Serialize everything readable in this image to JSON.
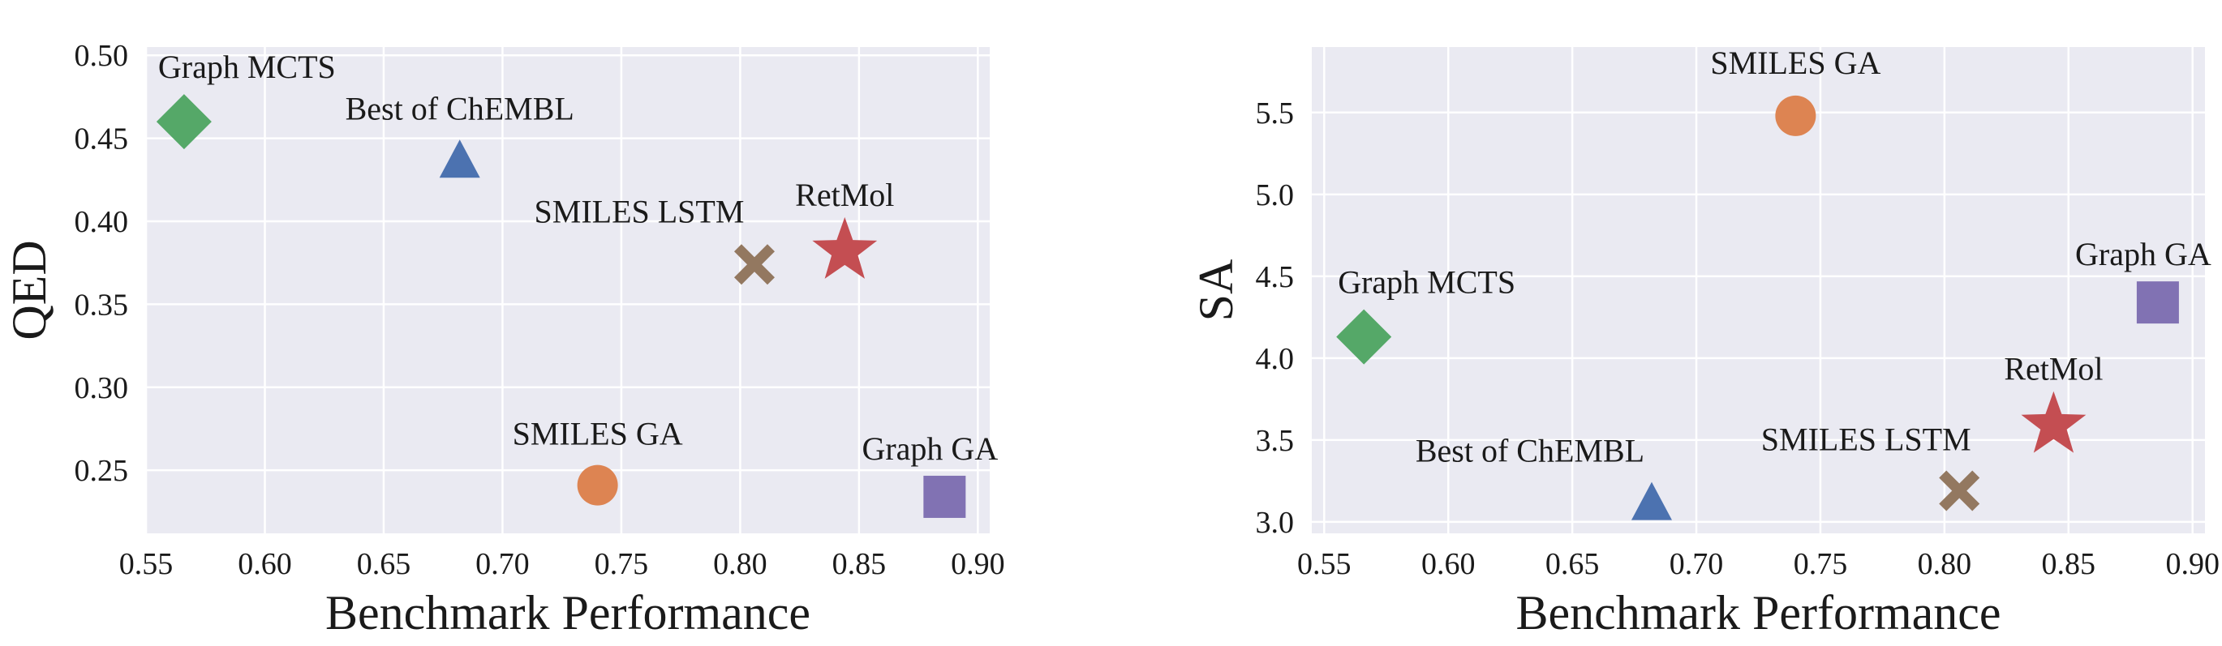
{
  "chart_data": [
    {
      "type": "scatter",
      "xlabel": "Benchmark Performance",
      "ylabel": "QED",
      "xlim": [
        0.55,
        0.905
      ],
      "ylim": [
        0.212,
        0.505
      ],
      "xticks": [
        "0.55",
        "0.60",
        "0.65",
        "0.70",
        "0.75",
        "0.80",
        "0.85",
        "0.90"
      ],
      "yticks": [
        "0.25",
        "0.30",
        "0.35",
        "0.40",
        "0.45",
        "0.50"
      ],
      "grid": true,
      "points": [
        {
          "label": "Graph MCTS",
          "x": 0.566,
          "y": 0.46,
          "marker": "diamond",
          "color": "#55a868"
        },
        {
          "label": "Best of ChEMBL",
          "x": 0.682,
          "y": 0.436,
          "marker": "triangle",
          "color": "#4c72b0"
        },
        {
          "label": "SMILES LSTM",
          "x": 0.806,
          "y": 0.374,
          "marker": "x",
          "color": "#937860"
        },
        {
          "label": "RetMol",
          "x": 0.844,
          "y": 0.382,
          "marker": "star",
          "color": "#c44e52"
        },
        {
          "label": "SMILES GA",
          "x": 0.74,
          "y": 0.241,
          "marker": "circle",
          "color": "#dd8452"
        },
        {
          "label": "Graph GA",
          "x": 0.886,
          "y": 0.234,
          "marker": "square",
          "color": "#8172b3"
        }
      ]
    },
    {
      "type": "scatter",
      "xlabel": "Benchmark Performance",
      "ylabel": "SA",
      "xlim": [
        0.545,
        0.905
      ],
      "ylim": [
        2.93,
        5.9
      ],
      "xticks": [
        "0.55",
        "0.60",
        "0.65",
        "0.70",
        "0.75",
        "0.80",
        "0.85",
        "0.90"
      ],
      "yticks": [
        "3.0",
        "3.5",
        "4.0",
        "4.5",
        "5.0",
        "5.5"
      ],
      "grid": true,
      "points": [
        {
          "label": "SMILES GA",
          "x": 0.74,
          "y": 5.48,
          "marker": "circle",
          "color": "#dd8452"
        },
        {
          "label": "Graph GA",
          "x": 0.886,
          "y": 4.34,
          "marker": "square",
          "color": "#8172b3"
        },
        {
          "label": "Graph MCTS",
          "x": 0.566,
          "y": 4.13,
          "marker": "diamond",
          "color": "#55a868"
        },
        {
          "label": "RetMol",
          "x": 0.844,
          "y": 3.59,
          "marker": "star",
          "color": "#c44e52"
        },
        {
          "label": "Best of ChEMBL",
          "x": 0.682,
          "y": 3.11,
          "marker": "triangle",
          "color": "#4c72b0"
        },
        {
          "label": "SMILES LSTM",
          "x": 0.806,
          "y": 3.19,
          "marker": "x",
          "color": "#937860"
        }
      ]
    }
  ]
}
